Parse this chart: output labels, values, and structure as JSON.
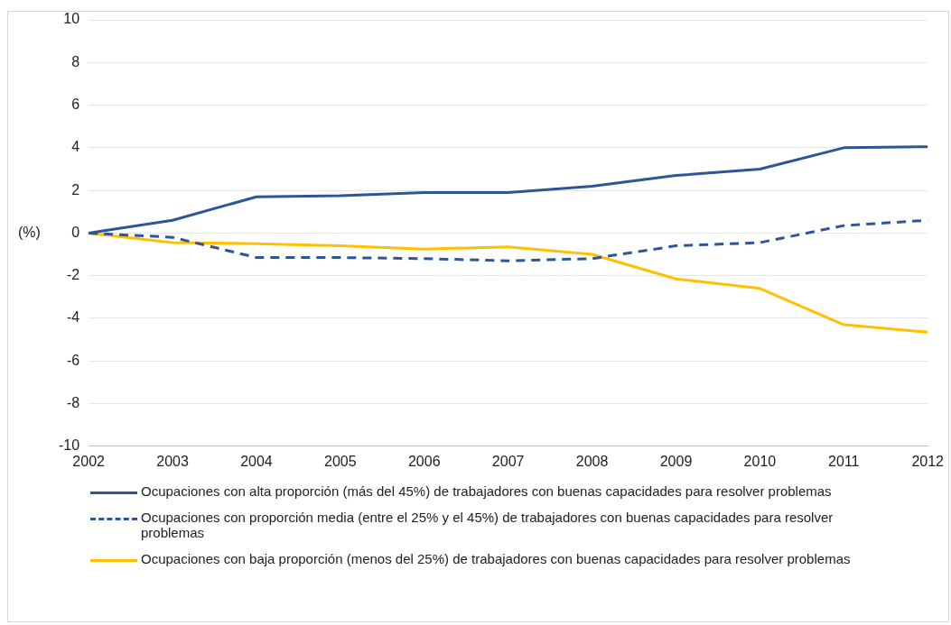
{
  "chart_data": {
    "type": "line",
    "ylabel": "(%)",
    "categories": [
      "2002",
      "2003",
      "2004",
      "2005",
      "2006",
      "2007",
      "2008",
      "2009",
      "2010",
      "2011",
      "2012"
    ],
    "series": [
      {
        "name": "Ocupaciones con alta proporción (más del 45%) de trabajadores con buenas capacidades para resolver problemas",
        "color": "#2f5597",
        "line_style": "solid",
        "values": [
          0,
          0.6,
          1.7,
          1.75,
          1.9,
          1.9,
          2.2,
          2.7,
          3.0,
          4.0,
          4.05
        ]
      },
      {
        "name": "Ocupaciones con proporción media (entre el 25% y el 45%) de trabajadores con buenas capacidades para resolver problemas",
        "color": "#2f5597",
        "line_style": "dashed",
        "values": [
          0,
          -0.2,
          -1.15,
          -1.15,
          -1.2,
          -1.3,
          -1.2,
          -0.6,
          -0.45,
          0.35,
          0.6
        ]
      },
      {
        "name": "Ocupaciones con baja proporción (menos del 25%) de trabajadores con buenas capacidades para resolver problemas",
        "color": "#ffc000",
        "line_style": "solid",
        "values": [
          0,
          -0.45,
          -0.5,
          -0.6,
          -0.75,
          -0.65,
          -1.0,
          -2.15,
          -2.6,
          -4.3,
          -4.65
        ]
      }
    ],
    "ylim": [
      -10,
      10
    ],
    "yticks": [
      -10,
      -8,
      -6,
      -4,
      -2,
      0,
      2,
      4,
      6,
      8,
      10
    ],
    "grid": "y",
    "legend": "bottom",
    "marker": "none"
  }
}
